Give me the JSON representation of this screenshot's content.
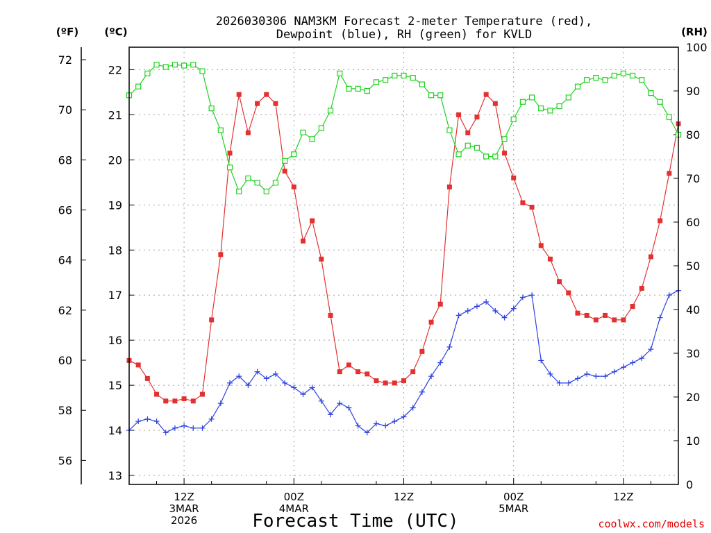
{
  "chart_data": {
    "type": "line",
    "title_line1": "2026030306 NAM3KM Forecast 2-meter Temperature (red),",
    "title_line2": "Dewpoint (blue), RH (green) for KVLD",
    "xlabel": "Forecast Time (UTC)",
    "credit": "coolwx.com/models",
    "unit_f": "(ºF)",
    "unit_c": "(ºC)",
    "unit_rh": "(RH)",
    "f_ticks": [
      "56",
      "58",
      "60",
      "62",
      "64",
      "66",
      "68",
      "70",
      "72"
    ],
    "c_ticks": [
      "13",
      "14",
      "15",
      "16",
      "17",
      "18",
      "19",
      "20",
      "21",
      "22"
    ],
    "rh_ticks": [
      "0",
      "10",
      "20",
      "30",
      "40",
      "50",
      "60",
      "70",
      "80",
      "90",
      "100"
    ],
    "x_ticks": [
      {
        "hour": 6,
        "line1": "12Z",
        "line2": "3MAR",
        "line3": "2026"
      },
      {
        "hour": 18,
        "line1": "00Z",
        "line2": "4MAR",
        "line3": ""
      },
      {
        "hour": 30,
        "line1": "12Z",
        "line2": "",
        "line3": ""
      },
      {
        "hour": 42,
        "line1": "00Z",
        "line2": "5MAR",
        "line3": ""
      },
      {
        "hour": 54,
        "line1": "12Z",
        "line2": "",
        "line3": ""
      }
    ],
    "xlim": [
      0,
      60
    ],
    "ylim_c": [
      12.8,
      22.5
    ],
    "ylim_rh": [
      0,
      100
    ],
    "grid": true,
    "series": [
      {
        "name": "Temperature",
        "color": "#e23131",
        "marker": "filled-square",
        "axis": "c",
        "values": [
          15.55,
          15.45,
          15.15,
          14.8,
          14.65,
          14.65,
          14.7,
          14.65,
          14.8,
          16.45,
          17.9,
          20.15,
          21.45,
          20.6,
          21.25,
          21.45,
          21.25,
          19.75,
          19.4,
          18.2,
          18.65,
          17.8,
          16.55,
          15.3,
          15.45,
          15.3,
          15.25,
          15.1,
          15.05,
          15.05,
          15.1,
          15.3,
          15.75,
          16.4,
          16.8,
          19.4,
          21.0,
          20.6,
          20.95,
          21.45,
          21.25,
          20.15,
          19.6,
          19.05,
          18.95,
          18.1,
          17.8,
          17.3,
          17.05,
          16.6,
          16.55,
          16.45,
          16.55,
          16.45,
          16.45,
          16.75,
          17.15,
          17.85,
          18.65,
          19.7,
          20.8
        ]
      },
      {
        "name": "Dewpoint",
        "color": "#2a40e0",
        "marker": "plus",
        "axis": "c",
        "values": [
          14.0,
          14.2,
          14.25,
          14.2,
          13.95,
          14.05,
          14.1,
          14.05,
          14.05,
          14.25,
          14.6,
          15.05,
          15.2,
          15.0,
          15.3,
          15.15,
          15.25,
          15.05,
          14.95,
          14.8,
          14.95,
          14.65,
          14.35,
          14.6,
          14.5,
          14.1,
          13.95,
          14.15,
          14.1,
          14.2,
          14.3,
          14.5,
          14.85,
          15.2,
          15.5,
          15.85,
          16.55,
          16.65,
          16.75,
          16.85,
          16.65,
          16.5,
          16.7,
          16.95,
          17.0,
          15.55,
          15.25,
          15.05,
          15.05,
          15.15,
          15.25,
          15.2,
          15.2,
          15.3,
          15.4,
          15.5,
          15.6,
          15.8,
          16.5,
          17.0,
          17.1
        ]
      },
      {
        "name": "RH",
        "color": "#1ed21e",
        "marker": "open-square",
        "axis": "rh",
        "values": [
          89,
          91,
          94,
          96,
          95.5,
          96,
          95.8,
          96,
          94.5,
          86,
          81,
          72.5,
          67,
          70,
          69,
          67,
          69,
          74,
          75.5,
          80.5,
          79,
          81.5,
          85.5,
          94,
          90.5,
          90.5,
          90,
          92,
          92.5,
          93.5,
          93.5,
          93,
          91.5,
          89,
          89,
          81,
          75.5,
          77.5,
          77,
          75,
          75,
          79,
          83.5,
          87.5,
          88.5,
          86,
          85.5,
          86.5,
          88.5,
          91,
          92.5,
          93,
          92.5,
          93.5,
          94,
          93.5,
          92.5,
          89.5,
          87.5,
          84,
          80
        ]
      }
    ]
  }
}
